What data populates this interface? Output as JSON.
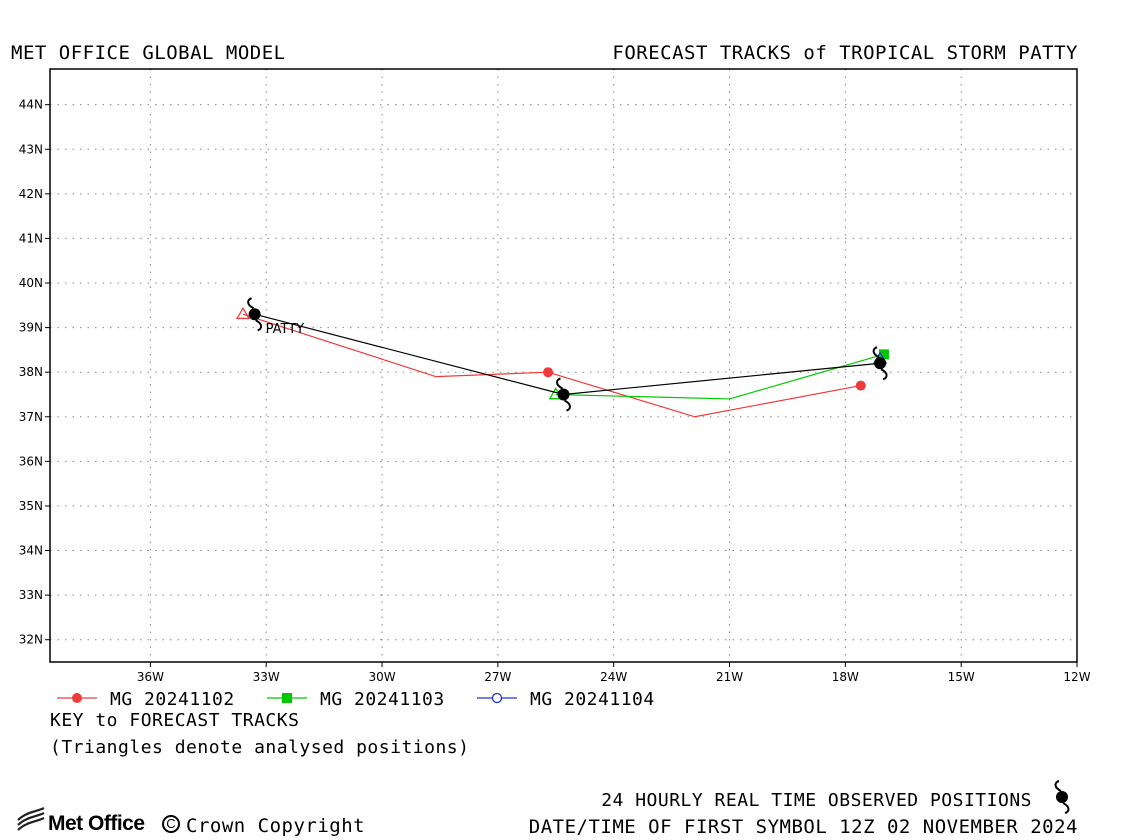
{
  "header": {
    "left_title": "MET OFFICE GLOBAL MODEL",
    "right_title": "FORECAST TRACKS of TROPICAL STORM PATTY"
  },
  "chart_data": {
    "type": "map-track",
    "x_ticks": [
      "36W",
      "33W",
      "30W",
      "27W",
      "24W",
      "21W",
      "18W",
      "15W",
      "12W"
    ],
    "y_ticks": [
      "44N",
      "43N",
      "42N",
      "41N",
      "40N",
      "39N",
      "38N",
      "37N",
      "36N",
      "35N",
      "34N",
      "33N",
      "32N"
    ],
    "lon_range": [
      -38.6,
      -12
    ],
    "lat_range": [
      31.5,
      44.8
    ],
    "grid": true,
    "storm_label": "PATTY",
    "observed": {
      "points": [
        {
          "lon": -33.3,
          "lat": 39.3
        },
        {
          "lon": -25.3,
          "lat": 37.5
        },
        {
          "lon": -17.1,
          "lat": 38.2
        }
      ],
      "color": "#000000"
    },
    "series": [
      {
        "name": "MG 20241102",
        "color": "#f03a3a",
        "marker": "filled-circle",
        "track": [
          {
            "lon": -33.6,
            "lat": 39.3
          },
          {
            "lon": -28.6,
            "lat": 37.9
          },
          {
            "lon": -25.7,
            "lat": 38.0
          },
          {
            "lon": -21.9,
            "lat": 37.0
          },
          {
            "lon": -17.6,
            "lat": 37.7
          }
        ],
        "markers": [
          {
            "lon": -25.7,
            "lat": 38.0
          },
          {
            "lon": -17.6,
            "lat": 37.7
          }
        ],
        "analysed": {
          "lon": -33.6,
          "lat": 39.3
        }
      },
      {
        "name": "MG 20241103",
        "color": "#00c800",
        "marker": "filled-square",
        "track": [
          {
            "lon": -25.5,
            "lat": 37.5
          },
          {
            "lon": -21.0,
            "lat": 37.4
          },
          {
            "lon": -17.0,
            "lat": 38.4
          }
        ],
        "markers": [
          {
            "lon": -17.0,
            "lat": 38.4
          }
        ],
        "analysed": {
          "lon": -25.5,
          "lat": 37.5
        }
      },
      {
        "name": "MG 20241104",
        "color": "#2233cc",
        "marker": "open-circle",
        "track": [],
        "markers": [],
        "analysed": {
          "lon": -17.1,
          "lat": 38.3
        }
      }
    ]
  },
  "legend": {
    "key_title": "KEY to FORECAST TRACKS",
    "note": "(Triangles denote analysed positions)"
  },
  "footer": {
    "observed_label": "24 HOURLY REAL TIME OBSERVED POSITIONS",
    "first_symbol": "DATE/TIME OF FIRST SYMBOL 12Z 02 NOVEMBER 2024",
    "logo_text": "Met Office",
    "copyright": "Crown Copyright"
  }
}
